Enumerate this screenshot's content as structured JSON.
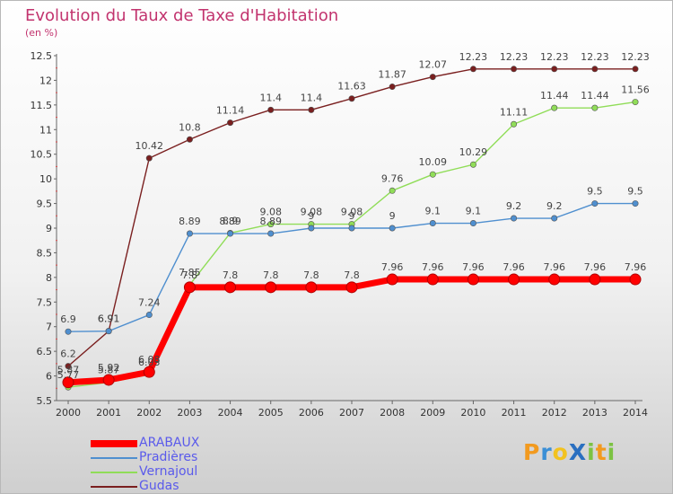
{
  "title": "Evolution du Taux de Taxe d'Habitation",
  "subtitle": "(en %)",
  "brand": {
    "text": "ProXiti",
    "letters": [
      {
        "ch": "P",
        "color": "#f29a1f"
      },
      {
        "ch": "r",
        "color": "#3a8fd6"
      },
      {
        "ch": "o",
        "color": "#f2c21f"
      },
      {
        "ch": "X",
        "color": "#2a6fc0"
      },
      {
        "ch": "i",
        "color": "#7cc243"
      },
      {
        "ch": "t",
        "color": "#f29a1f"
      },
      {
        "ch": "i",
        "color": "#7cc243"
      }
    ]
  },
  "chart_data": {
    "type": "line",
    "title": "Evolution du Taux de Taxe d'Habitation",
    "ylabel": "(en %)",
    "xlabel": "",
    "x": [
      "2000",
      "2001",
      "2002",
      "2003",
      "2004",
      "2005",
      "2006",
      "2007",
      "2008",
      "2009",
      "2010",
      "2011",
      "2012",
      "2013",
      "2014"
    ],
    "ylim": [
      5.5,
      12.5
    ],
    "yticks": [
      "5.5",
      "6",
      "6.5",
      "7",
      "7.5",
      "8",
      "8.5",
      "9",
      "9.5",
      "10",
      "10.5",
      "11",
      "11.5",
      "12",
      "12.5"
    ],
    "grid": false,
    "legend_position": "bottom-left",
    "series": [
      {
        "name": "ARABAUX",
        "color": "#ff0000",
        "values": [
          5.87,
          5.92,
          6.08,
          7.8,
          7.8,
          7.8,
          7.8,
          7.8,
          7.96,
          7.96,
          7.96,
          7.96,
          7.96,
          7.96,
          7.96
        ],
        "labels": [
          "5.87",
          "5.92",
          "6.08",
          "7.8",
          "7.8",
          "7.8",
          "7.8",
          "7.8",
          "7.96",
          "7.96",
          "7.96",
          "7.96",
          "7.96",
          "7.96",
          "7.96"
        ]
      },
      {
        "name": "Pradières",
        "color": "#4f8fcf",
        "values": [
          6.9,
          6.91,
          7.24,
          8.89,
          8.89,
          8.89,
          9,
          9,
          9,
          9.1,
          9.1,
          9.2,
          9.2,
          9.5,
          9.5
        ],
        "labels": [
          "6.9",
          "6.91",
          "7.24",
          "8.89",
          "8.89",
          "8.89",
          "9",
          "9",
          "9",
          "9.1",
          "9.1",
          "9.2",
          "9.2",
          "9.5",
          "9.5"
        ]
      },
      {
        "name": "Vernajoul",
        "color": "#90dd58",
        "values": [
          5.77,
          5.87,
          6.03,
          7.85,
          8.9,
          9.08,
          9.08,
          9.08,
          9.76,
          10.09,
          10.29,
          11.11,
          11.44,
          11.44,
          11.56
        ],
        "labels": [
          "5.77",
          "5.87",
          "6.03",
          "7.85",
          "8.9",
          "9.08",
          "9.08",
          "9.08",
          "9.76",
          "10.09",
          "10.29",
          "11.11",
          "11.44",
          "11.44",
          "11.56"
        ]
      },
      {
        "name": "Gudas",
        "color": "#7a1f1f",
        "values": [
          6.2,
          6.91,
          10.42,
          10.8,
          11.14,
          11.4,
          11.4,
          11.63,
          11.87,
          12.07,
          12.23,
          12.23,
          12.23,
          12.23,
          12.23
        ],
        "labels": [
          "6.2",
          "6.91",
          "10.42",
          "10.8",
          "11.14",
          "11.4",
          "11.4",
          "11.63",
          "11.87",
          "12.07",
          "12.23",
          "12.23",
          "12.23",
          "12.23",
          "12.23"
        ]
      }
    ]
  }
}
